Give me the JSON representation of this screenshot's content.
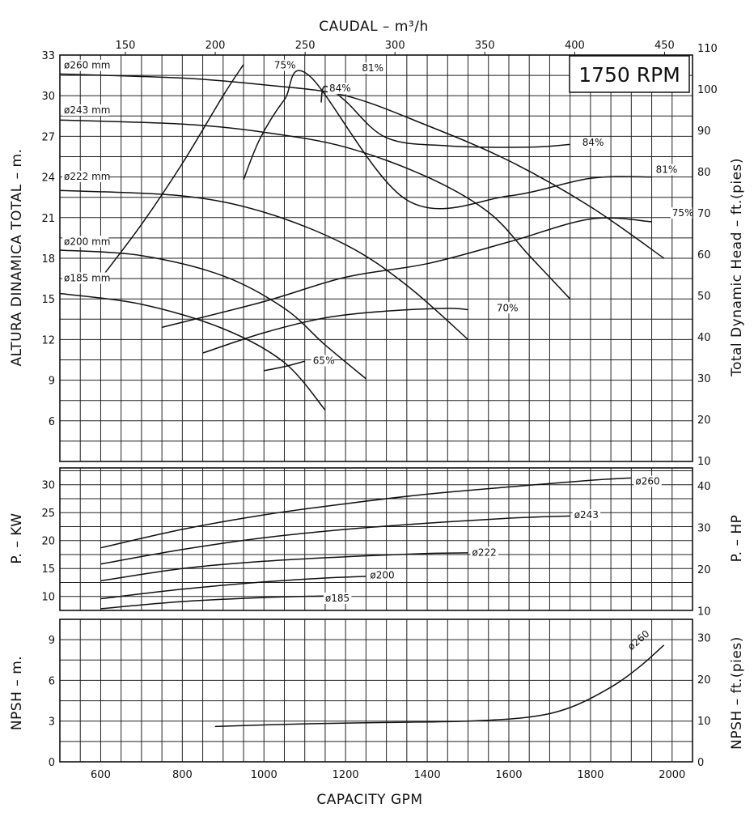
{
  "chart_data": [
    {
      "type": "line",
      "panel": "head",
      "rpm_label": "1750 RPM",
      "top_xlabel": "CAUDAL  – m³/h",
      "top_ticks": [
        150,
        200,
        250,
        300,
        350,
        400,
        450
      ],
      "ylabel_left": "ALTURA DINAMICA TOTAL – m.",
      "ylabel_right": "Total Dynamic Head – ft.(pies)",
      "yticks_left": [
        6,
        9,
        12,
        15,
        18,
        21,
        24,
        27,
        30,
        33
      ],
      "yticks_right": [
        10,
        20,
        30,
        40,
        50,
        60,
        70,
        80,
        90,
        100,
        110
      ],
      "xlim": [
        500,
        2050
      ],
      "ylim_m": [
        3,
        33
      ],
      "grid": true,
      "impeller_curves": [
        {
          "name": "ø260 mm",
          "points": [
            [
              500,
              31.6
            ],
            [
              800,
              31.3
            ],
            [
              1000,
              30.8
            ],
            [
              1200,
              30.0
            ],
            [
              1400,
              27.8
            ],
            [
              1600,
              25.2
            ],
            [
              1800,
              21.8
            ],
            [
              1980,
              18.0
            ]
          ]
        },
        {
          "name": "ø243 mm",
          "points": [
            [
              500,
              28.2
            ],
            [
              800,
              27.9
            ],
            [
              1000,
              27.3
            ],
            [
              1200,
              26.2
            ],
            [
              1400,
              24.0
            ],
            [
              1550,
              21.4
            ],
            [
              1650,
              18.2
            ],
            [
              1750,
              15.0
            ]
          ]
        },
        {
          "name": "ø222 mm",
          "points": [
            [
              500,
              23.0
            ],
            [
              800,
              22.6
            ],
            [
              1000,
              21.4
            ],
            [
              1200,
              19.0
            ],
            [
              1350,
              16.0
            ],
            [
              1500,
              12.0
            ]
          ]
        },
        {
          "name": "ø200 mm",
          "points": [
            [
              500,
              18.6
            ],
            [
              700,
              18.2
            ],
            [
              900,
              16.7
            ],
            [
              1050,
              14.3
            ],
            [
              1150,
              11.6
            ],
            [
              1250,
              9.1
            ]
          ]
        },
        {
          "name": "ø185 mm",
          "points": [
            [
              500,
              15.4
            ],
            [
              700,
              14.6
            ],
            [
              900,
              12.8
            ],
            [
              1050,
              10.3
            ],
            [
              1150,
              6.8
            ]
          ]
        }
      ],
      "efficiency_curves": [
        {
          "name": "75%",
          "points": [
            [
              600,
              16.5
            ],
            [
              700,
              20.5
            ],
            [
              800,
              25.0
            ],
            [
              900,
              30.0
            ],
            [
              950,
              32.3
            ]
          ]
        },
        {
          "name": "81%",
          "points": [
            [
              950,
              23.8
            ],
            [
              990,
              26.8
            ],
            [
              1050,
              29.7
            ],
            [
              1110,
              31.5
            ],
            [
              1350,
              22.3
            ],
            [
              1600,
              22.6
            ],
            [
              1800,
              23.9
            ],
            [
              1950,
              24.0
            ]
          ]
        },
        {
          "name": "84%",
          "points": [
            [
              1140,
              29.5
            ],
            [
              1150,
              30.7
            ],
            [
              1200,
              29.6
            ],
            [
              1300,
              26.9
            ],
            [
              1450,
              26.3
            ],
            [
              1650,
              26.2
            ],
            [
              1750,
              26.4
            ]
          ]
        },
        {
          "name": "75% (right)",
          "points": [
            [
              750,
              12.9
            ],
            [
              1000,
              14.8
            ],
            [
              1200,
              16.6
            ],
            [
              1400,
              17.6
            ],
            [
              1600,
              19.2
            ],
            [
              1800,
              20.9
            ],
            [
              1950,
              20.7
            ]
          ]
        },
        {
          "name": "70%",
          "points": [
            [
              850,
              11.0
            ],
            [
              1000,
              12.5
            ],
            [
              1150,
              13.6
            ],
            [
              1300,
              14.1
            ],
            [
              1450,
              14.3
            ],
            [
              1500,
              14.2
            ]
          ]
        },
        {
          "name": "65%",
          "points": [
            [
              1000,
              9.7
            ],
            [
              1050,
              10.0
            ],
            [
              1100,
              10.4
            ]
          ]
        }
      ],
      "curve_labels": [
        {
          "text": "ø260 mm",
          "x": 510,
          "y": 32.0
        },
        {
          "text": "ø243 mm",
          "x": 510,
          "y": 28.7
        },
        {
          "text": "ø222 mm",
          "x": 510,
          "y": 23.8
        },
        {
          "text": "ø200 mm",
          "x": 510,
          "y": 19.0
        },
        {
          "text": "ø185 mm",
          "x": 510,
          "y": 16.3
        },
        {
          "text": "75%",
          "x": 1025,
          "y": 32.0
        },
        {
          "text": "81%",
          "x": 1240,
          "y": 31.8
        },
        {
          "text": "84%",
          "x": 1160,
          "y": 30.3
        },
        {
          "text": "84%",
          "x": 1780,
          "y": 26.3
        },
        {
          "text": "81%",
          "x": 1960,
          "y": 24.3
        },
        {
          "text": "75%",
          "x": 2000,
          "y": 21.1
        },
        {
          "text": "70%",
          "x": 1570,
          "y": 14.1
        },
        {
          "text": "65%",
          "x": 1120,
          "y": 10.2
        }
      ]
    },
    {
      "type": "line",
      "panel": "power",
      "ylabel_left": "P. – KW",
      "ylabel_right": "P. – HP",
      "yticks_left": [
        10,
        15,
        20,
        25,
        30
      ],
      "yticks_right": [
        10,
        20,
        30,
        40
      ],
      "ylim_kw": [
        7.5,
        33
      ],
      "series": [
        {
          "name": "ø260",
          "x": [
            600,
            800,
            1000,
            1200,
            1400,
            1600,
            1800,
            1900
          ],
          "y": [
            18.7,
            22.0,
            24.6,
            26.6,
            28.3,
            29.6,
            30.8,
            31.2
          ]
        },
        {
          "name": "ø243",
          "x": [
            600,
            800,
            1000,
            1200,
            1400,
            1600,
            1750
          ],
          "y": [
            15.8,
            18.4,
            20.5,
            22.0,
            23.1,
            24.0,
            24.4
          ]
        },
        {
          "name": "ø222",
          "x": [
            600,
            800,
            1000,
            1200,
            1400,
            1500
          ],
          "y": [
            12.8,
            15.0,
            16.3,
            17.1,
            17.7,
            17.8
          ]
        },
        {
          "name": "ø200",
          "x": [
            600,
            800,
            1000,
            1150,
            1250
          ],
          "y": [
            9.6,
            11.3,
            12.6,
            13.3,
            13.6
          ]
        },
        {
          "name": "ø185",
          "x": [
            600,
            800,
            1000,
            1150
          ],
          "y": [
            7.8,
            9.1,
            9.8,
            10.1
          ]
        }
      ],
      "labels": [
        {
          "text": "ø260",
          "x": 1910,
          "y": 30.0
        },
        {
          "text": "ø243",
          "x": 1760,
          "y": 24.0
        },
        {
          "text": "ø222",
          "x": 1510,
          "y": 17.3
        },
        {
          "text": "ø200",
          "x": 1260,
          "y": 13.2
        },
        {
          "text": "ø185",
          "x": 1150,
          "y": 9.1
        }
      ]
    },
    {
      "type": "line",
      "panel": "npsh",
      "ylabel_left": "NPSH – m.",
      "ylabel_right": "NPSH – ft.(pies)",
      "yticks_left": [
        0,
        3,
        6,
        9
      ],
      "yticks_right": [
        0,
        10,
        20,
        30
      ],
      "xlabel": "CAPACITY GPM",
      "xticks": [
        600,
        800,
        1000,
        1200,
        1400,
        1600,
        1800,
        2000
      ],
      "ylim_m": [
        0,
        10.5
      ],
      "series": [
        {
          "name": "ø260",
          "x": [
            880,
            1100,
            1300,
            1500,
            1650,
            1750,
            1850,
            1920,
            1980
          ],
          "y": [
            2.6,
            2.8,
            2.9,
            3.0,
            3.3,
            4.0,
            5.5,
            7.0,
            8.6
          ]
        }
      ],
      "labels": [
        {
          "text": "ø260",
          "x": 1900,
          "y": 8.2
        }
      ]
    }
  ]
}
